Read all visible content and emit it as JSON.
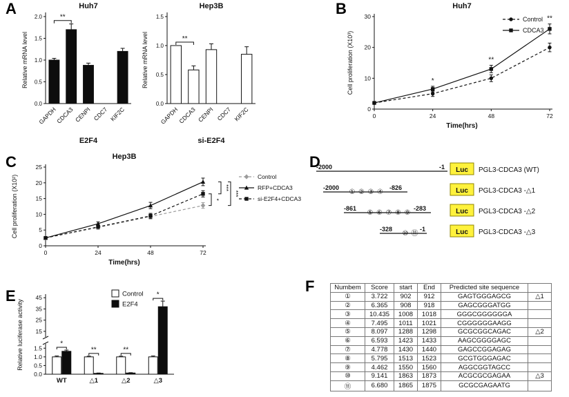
{
  "panel_labels": {
    "A": "A",
    "B": "B",
    "C": "C",
    "D": "D",
    "E": "E",
    "F": "F"
  },
  "chart_data": [
    {
      "panel": "A",
      "type": "bar",
      "title": "Huh7",
      "ylabel": "Relative mRNA level",
      "xlabel": "E2F4",
      "ylim": [
        0,
        2.0
      ],
      "ytick_vals": [
        0,
        0.5,
        1.0,
        1.5,
        2.0
      ],
      "ytick_labels": [
        "0.0",
        "0.5",
        "1.0",
        "1.5",
        "2.0"
      ],
      "categories": [
        "GAPDH",
        "CDCA3",
        "CENPI",
        "CDC7",
        "KIF2C"
      ],
      "values": [
        1.0,
        1.7,
        0.88,
        0,
        1.2
      ],
      "errors": [
        0.04,
        0.13,
        0.05,
        0,
        0.07
      ],
      "bar_fill": "#0d0d0d",
      "significance": [
        {
          "from": 0,
          "to": 1,
          "label": "**"
        }
      ]
    },
    {
      "panel": "A",
      "type": "bar",
      "title": "Hep3B",
      "ylabel": "Relative mRNA level",
      "xlabel": "si-E2F4",
      "ylim": [
        0,
        1.5
      ],
      "ytick_vals": [
        0,
        0.5,
        1.0,
        1.5
      ],
      "ytick_labels": [
        "0.0",
        "0.5",
        "1.0",
        "1.5"
      ],
      "categories": [
        "GAPDH",
        "CDCA3",
        "CENPI",
        "CDC7",
        "KIF2C"
      ],
      "values": [
        1.0,
        0.58,
        0.93,
        0,
        0.85
      ],
      "errors": [
        0,
        0.07,
        0.1,
        0,
        0.13
      ],
      "bar_fill": "#ffffff",
      "significance": [
        {
          "from": 0,
          "to": 1,
          "label": "**"
        }
      ]
    },
    {
      "panel": "B",
      "type": "line",
      "title": "Huh7",
      "ylabel": "Cell proliferation (X10³)",
      "xlabel": "Time(hrs)",
      "x": [
        0,
        24,
        48,
        72
      ],
      "ylim": [
        0,
        30
      ],
      "ytick_vals": [
        0,
        10,
        20,
        30
      ],
      "series": [
        {
          "name": "Control",
          "values": [
            2,
            5,
            10,
            20
          ],
          "errors": [
            0.4,
            0.9,
            1.1,
            1.4
          ],
          "dash": "4,3",
          "marker": "circle",
          "color": "#111111"
        },
        {
          "name": "CDCA3",
          "values": [
            2,
            6.5,
            13,
            26
          ],
          "errors": [
            0.4,
            0.9,
            1.2,
            1.6
          ],
          "dash": "",
          "marker": "square",
          "color": "#111111"
        }
      ],
      "sig_marks": [
        {
          "xi": 1,
          "label": "*"
        },
        {
          "xi": 2,
          "label": "**"
        },
        {
          "xi": 3,
          "label": "**"
        }
      ],
      "legend_pos": "inside-top-right"
    },
    {
      "panel": "C",
      "type": "line",
      "title": "Hep3B",
      "ylabel": "Cell proliferation (X10²)",
      "xlabel": "Time(hrs)",
      "x": [
        0,
        24,
        48,
        72
      ],
      "ylim": [
        0,
        25
      ],
      "ytick_vals": [
        0,
        5,
        10,
        15,
        20,
        25
      ],
      "series": [
        {
          "name": "Control",
          "values": [
            2.5,
            5.8,
            9.3,
            12.8
          ],
          "errors": [
            0.3,
            0.6,
            0.8,
            0.9
          ],
          "dash": "4,3",
          "marker": "diamond",
          "color": "#9b9b9b"
        },
        {
          "name": "RFP+CDCA3",
          "values": [
            2.5,
            7,
            12.8,
            20.3
          ],
          "errors": [
            0.3,
            0.6,
            1.0,
            1.2
          ],
          "dash": "",
          "marker": "triangle",
          "color": "#111111"
        },
        {
          "name": "si-E2F4+CDCA3",
          "values": [
            2.5,
            6,
            9.5,
            16.5
          ],
          "errors": [
            0.3,
            0.5,
            0.8,
            1.0
          ],
          "dash": "4,3",
          "marker": "square",
          "color": "#111111"
        }
      ],
      "sig_marks": [],
      "brackets": [
        {
          "a": 2,
          "b": 0,
          "label": "*"
        },
        {
          "a": 1,
          "b": 2,
          "label": "***"
        },
        {
          "a": 1,
          "b": 0,
          "label": "***"
        }
      ],
      "legend_pos": "outside-right"
    },
    {
      "panel": "E",
      "type": "bar",
      "subtype": "grouped-broken-axis",
      "ylabel": "Relative luciferase activity",
      "categories": [
        "WT",
        "△1",
        "△2",
        "△3"
      ],
      "series": [
        {
          "name": "Control",
          "fill": "#ffffff",
          "values": [
            1.0,
            1.0,
            1.0,
            1.0
          ],
          "errors": [
            0.05,
            0.04,
            0.04,
            0.05
          ]
        },
        {
          "name": "E2F4",
          "fill": "#0d0d0d",
          "values": [
            1.32,
            0.05,
            0.07,
            37
          ],
          "errors": [
            0.07,
            0.02,
            0.02,
            5
          ]
        }
      ],
      "lower_ticks": [
        {
          "v": 0,
          "t": "0.0"
        },
        {
          "v": 0.5,
          "t": "0.5"
        },
        {
          "v": 1.0,
          "t": "1.0"
        },
        {
          "v": 1.5,
          "t": "1.5"
        }
      ],
      "upper_ticks": [
        {
          "v": 15,
          "t": "15"
        },
        {
          "v": 25,
          "t": "25"
        },
        {
          "v": 35,
          "t": "35"
        },
        {
          "v": 45,
          "t": "45"
        }
      ],
      "significance": [
        {
          "cat": 0,
          "label": "*"
        },
        {
          "cat": 1,
          "label": "**"
        },
        {
          "cat": 2,
          "label": "**"
        },
        {
          "cat": 3,
          "label": "*"
        }
      ]
    },
    {
      "panel": "F",
      "type": "table",
      "headers": [
        "Numbem",
        "Score",
        "start",
        "End",
        "Predicted site sequence",
        ""
      ],
      "rows": [
        [
          "①",
          "3.722",
          "902",
          "912",
          "GAGTGGGAGCG",
          "△1"
        ],
        [
          "②",
          "6.365",
          "908",
          "918",
          "GAGCGGGATGG",
          ""
        ],
        [
          "③",
          "10.435",
          "1008",
          "1018",
          "GGGCGGGGGGA",
          ""
        ],
        [
          "④",
          "7.495",
          "1011",
          "1021",
          "CGGGGGGAAGG",
          ""
        ],
        [
          "⑤",
          "8.097",
          "1288",
          "1298",
          "GCGCGGCAGAC",
          "△2"
        ],
        [
          "⑥",
          "6.593",
          "1423",
          "1433",
          "AAGCGGGGAGC",
          ""
        ],
        [
          "⑦",
          "4.778",
          "1430",
          "1440",
          "GAGCCGGAGAG",
          ""
        ],
        [
          "⑧",
          "5.795",
          "1513",
          "1523",
          "GCGTGGGAGAC",
          ""
        ],
        [
          "⑨",
          "4.462",
          "1550",
          "1560",
          "AGGCGGTAGCC",
          ""
        ],
        [
          "⑩",
          "9.141",
          "1863",
          "1873",
          "ACGCGCGAGAA",
          "△3"
        ],
        [
          "⑪",
          "6.680",
          "1865",
          "1875",
          "GCGCGAGAATG",
          ""
        ]
      ]
    }
  ],
  "promoter_diagram": {
    "luc_label": "Luc",
    "site_color": "#e2372b",
    "luc_fill": "#fff23c",
    "constructs": [
      {
        "start_label": "-2000",
        "end_label": "-1",
        "sites": [],
        "name": "PGL3-CDCA3 (WT)"
      },
      {
        "start_label": "-2000",
        "end_label": "-826",
        "sites": [
          "①",
          "②",
          "③",
          "④"
        ],
        "name": "PGL3-CDCA3 -△1"
      },
      {
        "start_label": "-861",
        "end_label": "-283",
        "sites": [
          "⑤",
          "⑥",
          "⑦",
          "⑧",
          "⑨"
        ],
        "name": "PGL3-CDCA3 -△2"
      },
      {
        "start_label": "-328",
        "end_label": "-1",
        "sites": [
          "⑩",
          "⑪"
        ],
        "name": "PGL3-CDCA3 -△3"
      }
    ]
  }
}
